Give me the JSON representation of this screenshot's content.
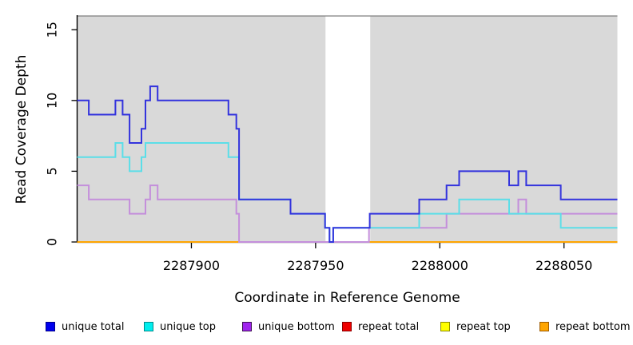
{
  "chart_data": {
    "type": "line",
    "subtype": "step-coverage",
    "xlabel": "Coordinate in Reference Genome",
    "ylabel": "Read Coverage Depth",
    "xlim": [
      2287854,
      2288071.5
    ],
    "ylim": [
      0,
      16
    ],
    "x_ticks": [
      2287900,
      2287950,
      2288000,
      2288050
    ],
    "y_ticks": [
      0,
      5,
      10,
      15
    ],
    "plot_background_color": "#D9D9D9",
    "top_border_color": "#7F7F7F",
    "highlight_band": {
      "x_start": 2287954,
      "x_end": 2287972,
      "color": "#FFFFFF"
    },
    "series": [
      {
        "name": "repeat total",
        "line_color": "#E02020",
        "points": [
          [
            2287854,
            0
          ]
        ]
      },
      {
        "name": "repeat top",
        "line_color": "#F0F000",
        "points": [
          [
            2287854,
            0
          ]
        ]
      },
      {
        "name": "repeat bottom",
        "line_color": "#FFA500",
        "points": [
          [
            2287854,
            0
          ]
        ]
      },
      {
        "name": "unique bottom",
        "line_color": "#C48FDB",
        "points": [
          [
            2287854,
            4
          ],
          [
            2287858.7,
            3
          ],
          [
            2287875.1,
            2
          ],
          [
            2287881.5,
            3
          ],
          [
            2287883.4,
            4
          ],
          [
            2287886.4,
            3
          ],
          [
            2287918.1,
            2
          ],
          [
            2287919.2,
            0
          ],
          [
            2287971.5,
            1
          ],
          [
            2288002.7,
            2
          ],
          [
            2288031.6,
            3
          ],
          [
            2288034.8,
            2
          ]
        ]
      },
      {
        "name": "unique top",
        "line_color": "#5BDEE8",
        "points": [
          [
            2287854,
            6
          ],
          [
            2287869.4,
            7
          ],
          [
            2287872.3,
            6
          ],
          [
            2287875.1,
            5
          ],
          [
            2287879.9,
            6
          ],
          [
            2287881.5,
            7
          ],
          [
            2287914.9,
            6
          ],
          [
            2287919.2,
            3
          ],
          [
            2287939.9,
            2
          ],
          [
            2287953.8,
            1
          ],
          [
            2287955.6,
            0
          ],
          [
            2287957.1,
            1
          ],
          [
            2287991.7,
            2
          ],
          [
            2288007.8,
            3
          ],
          [
            2288027.9,
            2
          ],
          [
            2288048.7,
            1
          ]
        ]
      },
      {
        "name": "unique total",
        "line_color": "#3333DD",
        "points": [
          [
            2287854,
            10
          ],
          [
            2287858.7,
            9
          ],
          [
            2287869.4,
            10
          ],
          [
            2287872.3,
            9
          ],
          [
            2287875.1,
            7
          ],
          [
            2287879.9,
            8
          ],
          [
            2287881.5,
            10
          ],
          [
            2287883.4,
            11
          ],
          [
            2287886.4,
            10
          ],
          [
            2287914.9,
            9
          ],
          [
            2287918.1,
            8
          ],
          [
            2287919.2,
            3
          ],
          [
            2287939.9,
            2
          ],
          [
            2287953.8,
            1
          ],
          [
            2287955.6,
            0
          ],
          [
            2287957.1,
            1
          ],
          [
            2287971.8,
            2
          ],
          [
            2287991.7,
            3
          ],
          [
            2288002.7,
            4
          ],
          [
            2288007.8,
            5
          ],
          [
            2288027.9,
            4
          ],
          [
            2288031.6,
            5
          ],
          [
            2288034.8,
            4
          ],
          [
            2288048.7,
            3
          ]
        ]
      }
    ],
    "legend_position": "bottom"
  },
  "legend": {
    "items": [
      {
        "label": "unique total",
        "fill": "#0000EE",
        "border": "#00008B"
      },
      {
        "label": "unique top",
        "fill": "#00EEEE",
        "border": "#008B8B"
      },
      {
        "label": "unique bottom",
        "fill": "#A024EE",
        "border": "#3C1053"
      },
      {
        "label": "repeat total",
        "fill": "#EE0000",
        "border": "#8B0000"
      },
      {
        "label": "repeat top",
        "fill": "#FFFF00",
        "border": "#8B8B00"
      },
      {
        "label": "repeat bottom",
        "fill": "#FFA500",
        "border": "#9C5A00"
      }
    ]
  }
}
